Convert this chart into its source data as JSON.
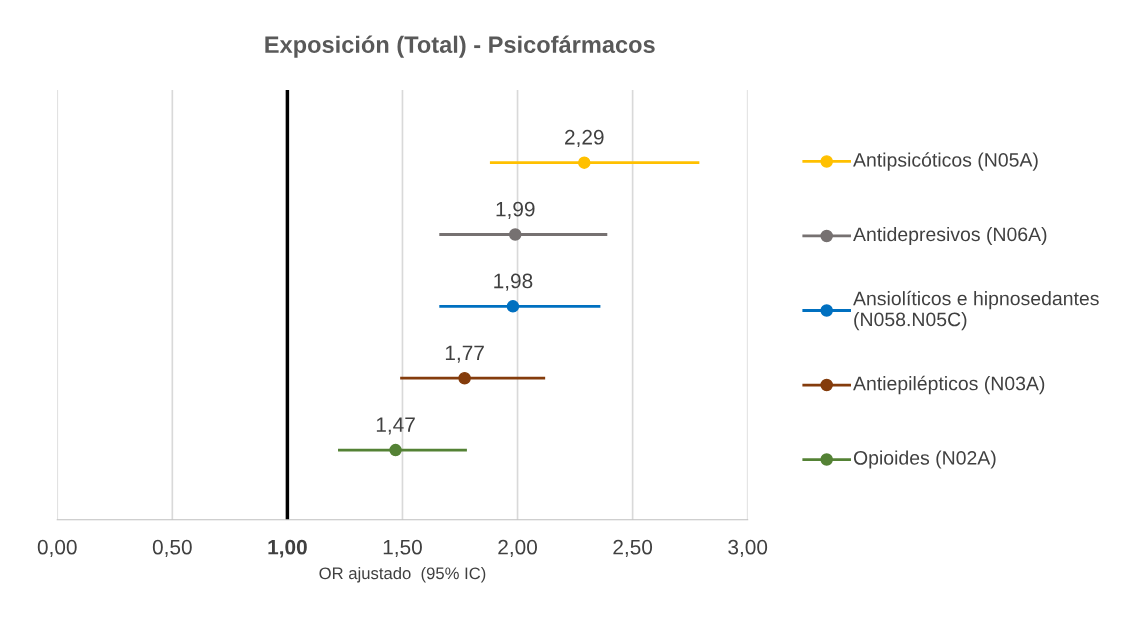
{
  "chart_data": {
    "type": "scatter",
    "orientation": "horizontal",
    "title": "Exposición (Total) - Psicofármacos",
    "xlabel": "OR ajustado  (95% IC)",
    "categories": [
      null,
      null,
      null,
      null,
      null
    ],
    "xlim": [
      0,
      3
    ],
    "xticks": [
      {
        "value": 0,
        "label": "0,00"
      },
      {
        "value": 0.5,
        "label": "0,50"
      },
      {
        "value": 1,
        "label": "1,00"
      },
      {
        "value": 1.5,
        "label": "1,50"
      },
      {
        "value": 2,
        "label": "2,00"
      },
      {
        "value": 2.5,
        "label": "2,50"
      },
      {
        "value": 3,
        "label": "3,00"
      }
    ],
    "grid": "x",
    "legend": "right",
    "marker": "circle",
    "ref_lines": [
      {
        "axis": "x",
        "value": 1,
        "color": "#000000"
      }
    ],
    "series": [
      {
        "name": "Antipsicóticos (N05A)",
        "color": "#ffc000",
        "values": [
          2.29,
          null,
          null,
          null,
          null
        ],
        "errors": [
          [
            1.88,
            2.79
          ],
          null,
          null,
          null,
          null
        ],
        "value_labels": [
          "2,29",
          null,
          null,
          null,
          null
        ]
      },
      {
        "name": "Antidepresivos (N06A)",
        "color": "#767171",
        "values": [
          null,
          1.99,
          null,
          null,
          null
        ],
        "errors": [
          null,
          [
            1.66,
            2.39
          ],
          null,
          null,
          null
        ],
        "value_labels": [
          null,
          "1,99",
          null,
          null,
          null
        ]
      },
      {
        "name": "Ansiolíticos e hipnosedantes (N058.N05C)",
        "color": "#0070c0",
        "values": [
          null,
          null,
          1.98,
          null,
          null
        ],
        "errors": [
          null,
          null,
          [
            1.66,
            2.36
          ],
          null,
          null
        ],
        "value_labels": [
          null,
          null,
          "1,98",
          null,
          null
        ]
      },
      {
        "name": "Antiepilépticos (N03A)",
        "color": "#843c0c",
        "values": [
          null,
          null,
          null,
          1.77,
          null
        ],
        "errors": [
          null,
          null,
          null,
          [
            1.49,
            2.12
          ],
          null
        ],
        "value_labels": [
          null,
          null,
          null,
          "1,77",
          null
        ]
      },
      {
        "name": "Opioides (N02A)",
        "color": "#548235",
        "values": [
          null,
          null,
          null,
          null,
          1.47
        ],
        "errors": [
          null,
          null,
          null,
          null,
          [
            1.22,
            1.78
          ]
        ],
        "value_labels": [
          null,
          null,
          null,
          null,
          "1,47"
        ]
      }
    ]
  }
}
